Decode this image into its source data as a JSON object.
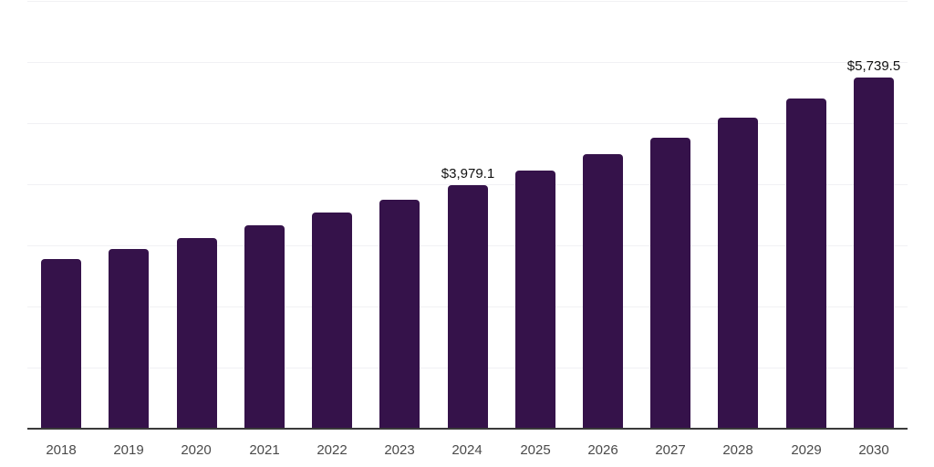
{
  "chart_data": {
    "type": "bar",
    "title": "",
    "xlabel": "",
    "ylabel": "",
    "categories": [
      "2018",
      "2019",
      "2020",
      "2021",
      "2022",
      "2023",
      "2024",
      "2025",
      "2026",
      "2027",
      "2028",
      "2029",
      "2030"
    ],
    "values": [
      2780,
      2940,
      3120,
      3330,
      3540,
      3750,
      3979.1,
      4225,
      4495,
      4765,
      5090,
      5405,
      5739.5
    ],
    "data_labels": [
      {
        "category": "2024",
        "text": "$3,979.1"
      },
      {
        "category": "2030",
        "text": "$5,739.5"
      }
    ],
    "ylim": [
      0,
      7000
    ],
    "gridline_interval": 1000,
    "grid": "horizontal-only",
    "legend": "none",
    "y_axis_tick_labels_visible": false,
    "colors": {
      "bar": "#35124A",
      "axis_line": "#3A3A3A",
      "gridline": "#F1F1F4",
      "tick_label": "#4A4A4A",
      "data_label": "#111111",
      "background": "#FFFFFF"
    }
  }
}
